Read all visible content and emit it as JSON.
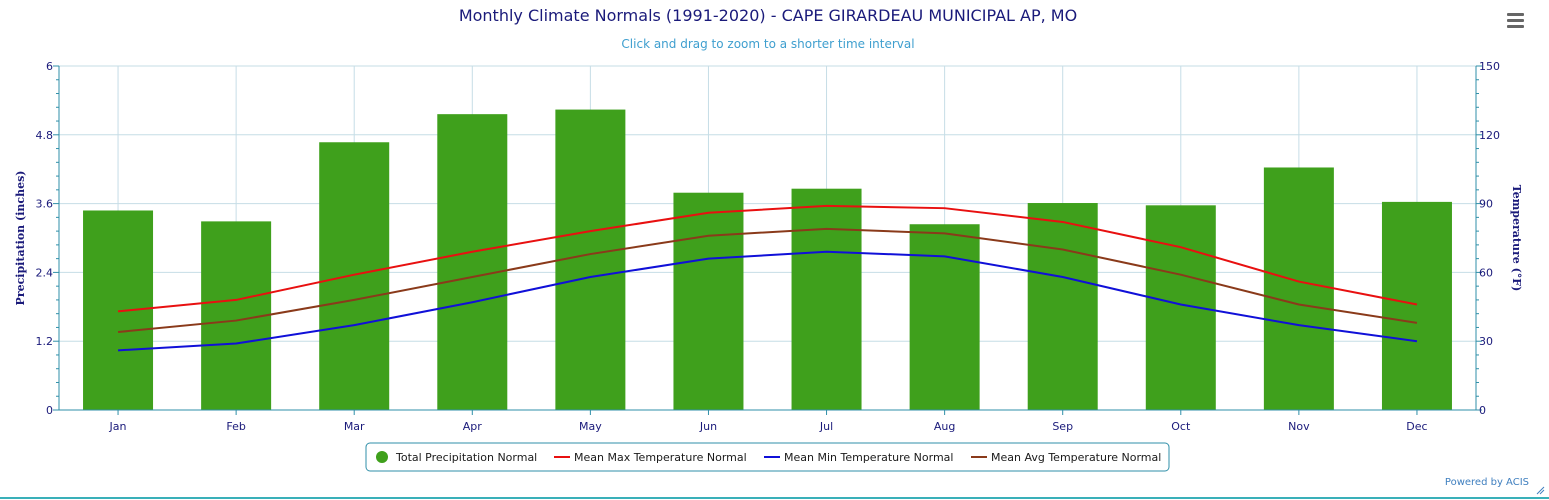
{
  "title": "Monthly Climate Normals (1991-2020) - CAPE GIRARDEAU MUNICIPAL AP, MO",
  "subtitle": "Click and drag to zoom to a shorter time interval",
  "credit": "Powered by ACIS",
  "icons": {
    "menu": "hamburger-menu-icon",
    "resize": "resize-grip-icon"
  },
  "colors": {
    "title": "#1a1a7a",
    "subtitle": "#3f9fcf",
    "axis_text": "#1a1a7a",
    "grid": "#c6dde6",
    "precip": "#3fa01c",
    "max_temp": "#e81010",
    "min_temp": "#1010d8",
    "avg_temp": "#8a3a1a"
  },
  "chart_data": {
    "type": "bar",
    "title": "Monthly Climate Normals (1991-2020) - CAPE GIRARDEAU MUNICIPAL AP, MO",
    "subtitle": "Click and drag to zoom to a shorter time interval",
    "categories": [
      "Jan",
      "Feb",
      "Mar",
      "Apr",
      "May",
      "Jun",
      "Jul",
      "Aug",
      "Sep",
      "Oct",
      "Nov",
      "Dec"
    ],
    "y_left": {
      "label": "Precipitation (inches)",
      "range": [
        0,
        6
      ],
      "ticks": [
        "0",
        "1.2",
        "2.4",
        "3.6",
        "4.8",
        "6"
      ]
    },
    "y_right": {
      "label": "Temperature (°F)",
      "range": [
        0,
        150
      ],
      "ticks": [
        "0",
        "30",
        "60",
        "90",
        "120",
        "150"
      ]
    },
    "grid": true,
    "legend_position": "bottom-center",
    "series": [
      {
        "name": "Total Precipitation Normal",
        "type": "bar",
        "axis": "left",
        "values": [
          3.48,
          3.29,
          4.67,
          5.16,
          5.24,
          3.79,
          3.86,
          3.24,
          3.61,
          3.57,
          4.23,
          3.63
        ]
      },
      {
        "name": "Mean Max Temperature Normal",
        "type": "line",
        "axis": "right",
        "values": [
          43,
          48,
          59,
          69,
          78,
          86,
          89,
          88,
          82,
          71,
          56,
          46
        ]
      },
      {
        "name": "Mean Min Temperature Normal",
        "type": "line",
        "axis": "right",
        "values": [
          26,
          29,
          37,
          47,
          58,
          66,
          69,
          67,
          58,
          46,
          37,
          30
        ]
      },
      {
        "name": "Mean Avg Temperature Normal",
        "type": "line",
        "axis": "right",
        "values": [
          34,
          39,
          48,
          58,
          68,
          76,
          79,
          77,
          70,
          59,
          46,
          38
        ]
      }
    ]
  }
}
